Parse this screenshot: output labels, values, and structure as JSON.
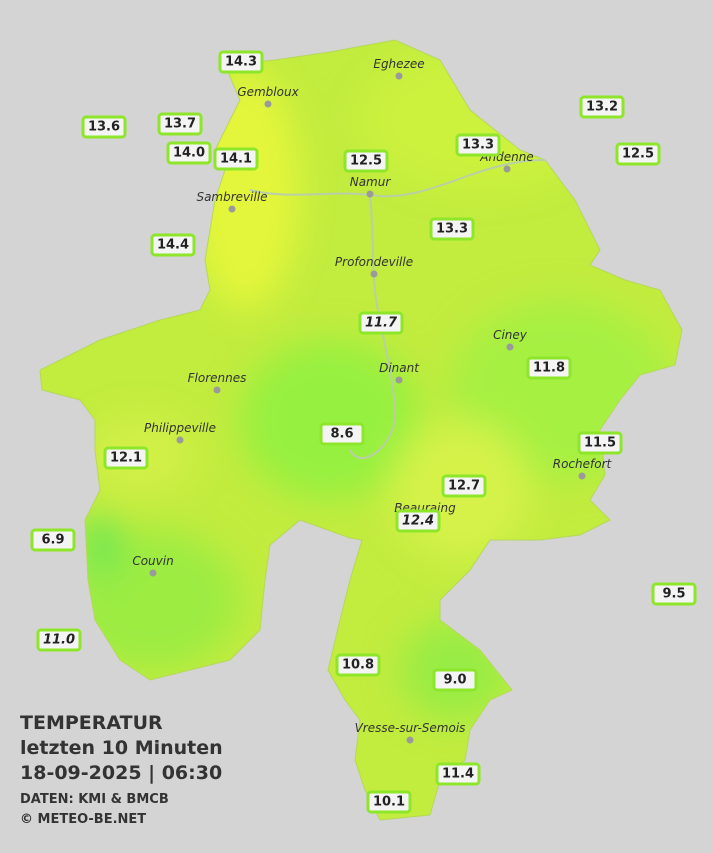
{
  "title": {
    "lines": [
      "TEMPERATUR",
      "letzten 10 Minuten",
      "18-09-2025  |  06:30"
    ],
    "credits": [
      "DATEN: KMI & BMCB",
      "© METEO-BE.NET"
    ]
  },
  "cities": [
    "Eghezee",
    "Gembloux",
    "Andenne",
    "Namur",
    "Sambreville",
    "Profondeville",
    "Ciney",
    "Florennes",
    "Dinant",
    "Philippeville",
    "Rochefort",
    "Beauraing",
    "Couvin",
    "Vresse-sur-Semois"
  ],
  "stations": [
    {
      "value": "14.3",
      "italic": false
    },
    {
      "value": "13.6",
      "italic": false
    },
    {
      "value": "13.7",
      "italic": false
    },
    {
      "value": "14.0",
      "italic": false
    },
    {
      "value": "14.1",
      "italic": false
    },
    {
      "value": "12.5",
      "italic": false
    },
    {
      "value": "13.3",
      "italic": false
    },
    {
      "value": "13.2",
      "italic": false
    },
    {
      "value": "12.5",
      "italic": false
    },
    {
      "value": "14.4",
      "italic": false
    },
    {
      "value": "13.3",
      "italic": false
    },
    {
      "value": "11.7",
      "italic": true
    },
    {
      "value": "11.8",
      "italic": false
    },
    {
      "value": "8.6",
      "italic": false
    },
    {
      "value": "11.5",
      "italic": false
    },
    {
      "value": "12.1",
      "italic": false
    },
    {
      "value": "12.7",
      "italic": false
    },
    {
      "value": "12.4",
      "italic": true
    },
    {
      "value": "6.9",
      "italic": false
    },
    {
      "value": "9.5",
      "italic": false
    },
    {
      "value": "11.0",
      "italic": true
    },
    {
      "value": "10.8",
      "italic": false
    },
    {
      "value": "9.0",
      "italic": false
    },
    {
      "value": "11.4",
      "italic": false
    },
    {
      "value": "10.1",
      "italic": false
    }
  ]
}
